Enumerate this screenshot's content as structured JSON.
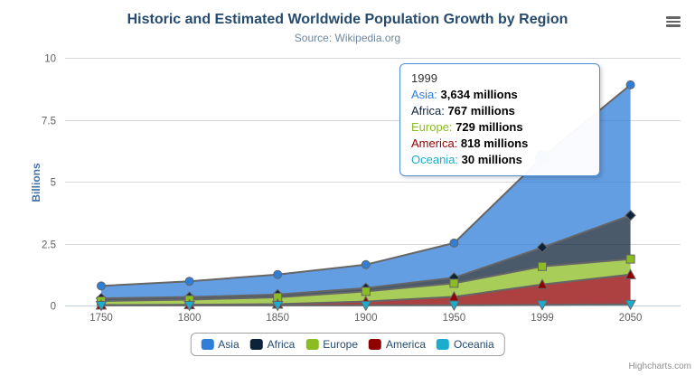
{
  "header": {
    "title": "Historic and Estimated Worldwide Population Growth by Region",
    "subtitle": "Source: Wikipedia.org"
  },
  "chart_data": {
    "type": "area",
    "stacking": "normal",
    "categories": [
      "1750",
      "1800",
      "1850",
      "1900",
      "1950",
      "1999",
      "2050"
    ],
    "series": [
      {
        "name": "Asia",
        "color": "#2f7ed8",
        "marker": "circle",
        "values": [
          502,
          635,
          809,
          947,
          1402,
          3634,
          5268
        ]
      },
      {
        "name": "Africa",
        "color": "#0d233a",
        "marker": "diamond",
        "values": [
          106,
          107,
          111,
          133,
          221,
          767,
          1766
        ]
      },
      {
        "name": "Europe",
        "color": "#8bbc21",
        "marker": "square",
        "values": [
          163,
          203,
          276,
          408,
          547,
          729,
          628
        ]
      },
      {
        "name": "America",
        "color": "#910000",
        "marker": "triangle",
        "values": [
          18,
          31,
          54,
          156,
          339,
          818,
          1201
        ]
      },
      {
        "name": "Oceania",
        "color": "#1aadce",
        "marker": "triangle-down",
        "values": [
          2,
          2,
          2,
          6,
          13,
          30,
          46
        ]
      }
    ],
    "values_unit": "millions",
    "ylabel": "Billions",
    "yticks": [
      0,
      2.5,
      5,
      7.5,
      10
    ],
    "ylim": [
      0,
      10
    ],
    "grid": true,
    "legend_position": "bottom",
    "hovered_point": {
      "series": "Asia",
      "category": "1999"
    }
  },
  "tooltip": {
    "header": "1999",
    "rows": [
      {
        "name": "Asia",
        "color": "#2f7ed8",
        "value": "3,634 millions"
      },
      {
        "name": "Africa",
        "color": "#0d233a",
        "value": "767 millions"
      },
      {
        "name": "Europe",
        "color": "#8bbc21",
        "value": "729 millions"
      },
      {
        "name": "America",
        "color": "#910000",
        "value": "818 millions"
      },
      {
        "name": "Oceania",
        "color": "#1aadce",
        "value": "30 millions"
      }
    ]
  },
  "credits": "Highcharts.com",
  "colors": {
    "title": "#274b6d",
    "subtitle": "#6d869f",
    "y_axis_title": "#4572a7",
    "axis_labels": "#606060",
    "gridline": "#d8d8d8",
    "axis_line": "#c0d0e0",
    "area_outline": "#666666",
    "tooltip_border": "#4f8fd5",
    "legend_text": "#274b6d"
  }
}
